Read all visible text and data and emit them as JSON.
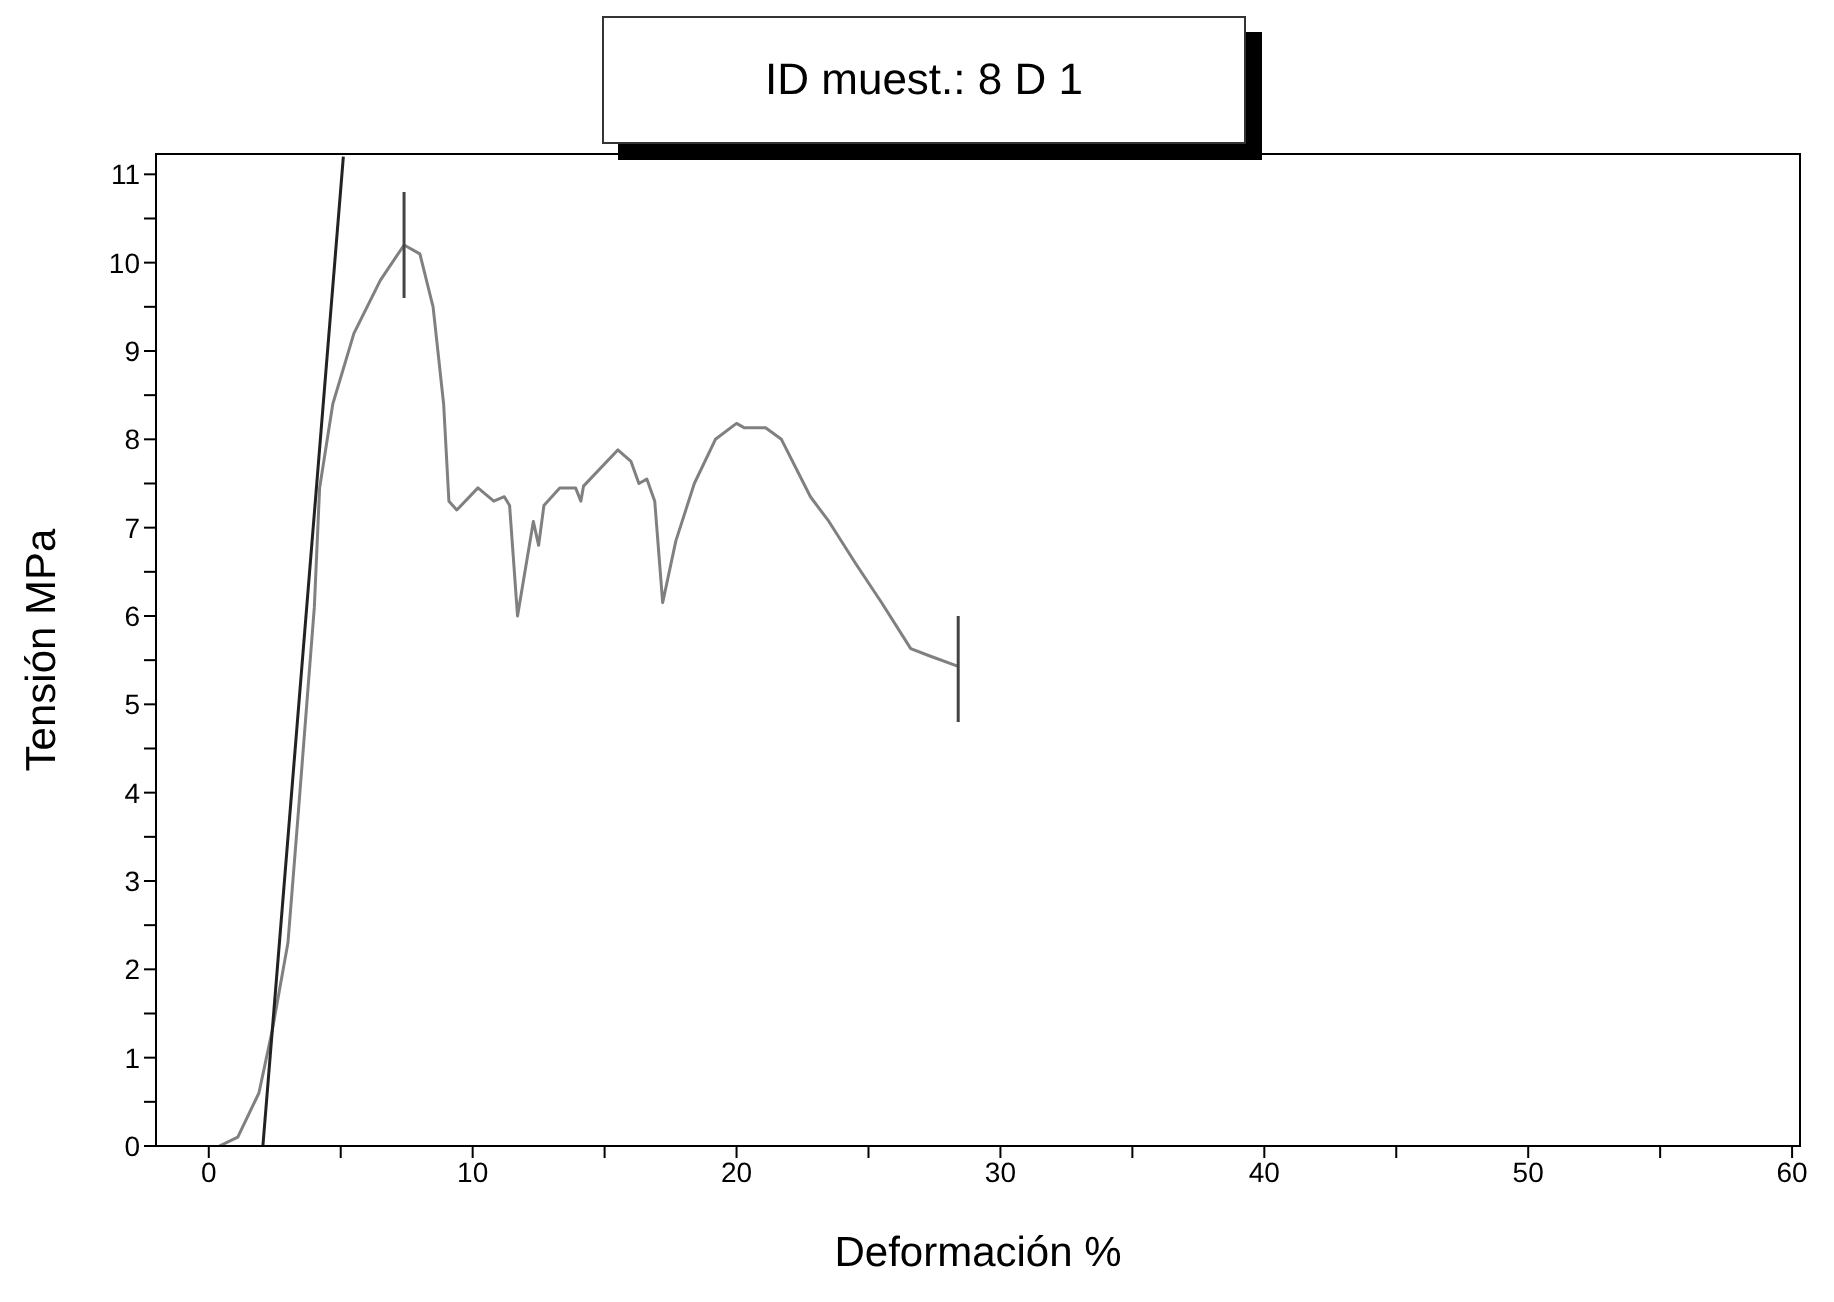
{
  "chart_data": {
    "type": "line",
    "title": "ID muest.: 8 D 1",
    "xlabel": "Deformación %",
    "ylabel": "Tensión MPa",
    "xlim": [
      -2,
      60.3
    ],
    "ylim": [
      0,
      11.23
    ],
    "xticks": [
      0,
      {
        "value": 5,
        "label": null
      },
      10,
      {
        "value": 15,
        "label": null
      },
      20,
      {
        "value": 25,
        "label": null
      },
      30,
      {
        "value": 35,
        "label": null
      },
      40,
      {
        "value": 45,
        "label": null
      },
      50,
      {
        "value": 55,
        "label": null
      },
      60
    ],
    "yticks": [
      0,
      {
        "value": 0.5,
        "label": null
      },
      1,
      {
        "value": 1.5,
        "label": null
      },
      2,
      {
        "value": 2.5,
        "label": null
      },
      3,
      {
        "value": 3.5,
        "label": null
      },
      4,
      {
        "value": 4.5,
        "label": null
      },
      5,
      {
        "value": 5.5,
        "label": null
      },
      6,
      {
        "value": 6.5,
        "label": null
      },
      7,
      {
        "value": 7.5,
        "label": null
      },
      8,
      {
        "value": 8.5,
        "label": null
      },
      9,
      {
        "value": 9.5,
        "label": null
      },
      10,
      {
        "value": 10.5,
        "label": null
      },
      11
    ],
    "grid": false,
    "legend": false,
    "marker": "none",
    "line_style": "solid",
    "series": [
      {
        "color": "#808080",
        "x": [
          0.4,
          1.1,
          1.9,
          2.4,
          3.0,
          3.4,
          4.0,
          4.2,
          4.7,
          5.5,
          6.5,
          7.4,
          8.0,
          8.5,
          8.9,
          9.1,
          9.4,
          10.2,
          10.8,
          11.2,
          11.4,
          11.7,
          12.3,
          12.5,
          12.7,
          13.3,
          13.9,
          14.1,
          14.2,
          15.5,
          16.0,
          16.3,
          16.6,
          16.9,
          17.2,
          17.7,
          18.4,
          19.2,
          20.0,
          20.3,
          21.1,
          21.7,
          22.8,
          23.5,
          24.5,
          25.5,
          26.6,
          27.3,
          28.4
        ],
        "values": [
          0,
          0.1,
          0.6,
          1.3,
          2.3,
          3.8,
          6.1,
          7.45,
          8.4,
          9.2,
          9.8,
          10.2,
          10.1,
          9.5,
          8.4,
          7.3,
          7.2,
          7.45,
          7.3,
          7.35,
          7.25,
          6.0,
          7.07,
          6.8,
          7.25,
          7.45,
          7.45,
          7.3,
          7.47,
          7.88,
          7.75,
          7.5,
          7.55,
          7.3,
          6.15,
          6.85,
          7.5,
          8.0,
          8.18,
          8.13,
          8.13,
          8.0,
          7.35,
          7.07,
          6.6,
          6.15,
          5.63,
          5.55,
          5.43
        ]
      },
      {
        "color": "#222222",
        "x": [
          2.05,
          5.1
        ],
        "values": [
          0,
          11.2
        ]
      },
      {
        "color": "#444444",
        "x": [
          7.4,
          7.4
        ],
        "values": [
          9.6,
          10.8
        ]
      },
      {
        "color": "#444444",
        "x": [
          28.4,
          28.4
        ],
        "values": [
          4.8,
          6.0
        ]
      }
    ]
  }
}
